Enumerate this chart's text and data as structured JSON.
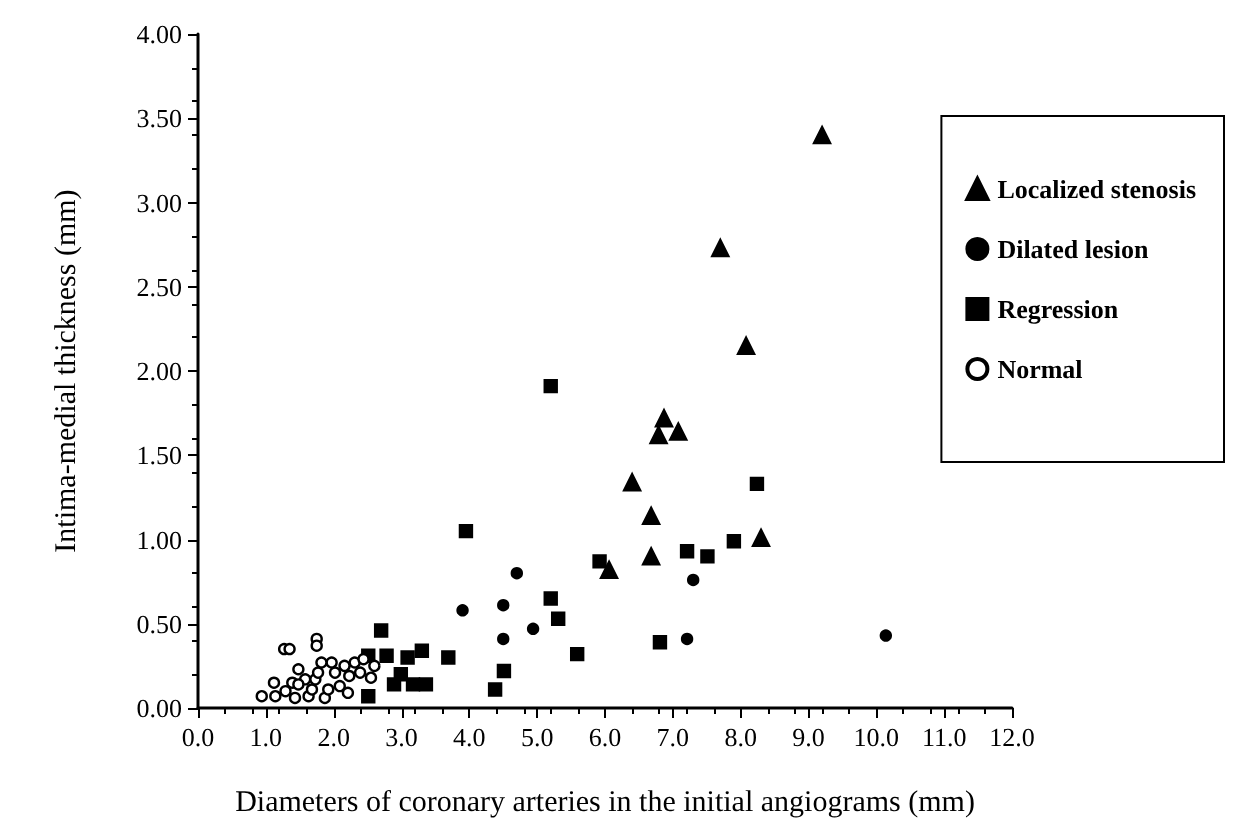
{
  "chart_data": {
    "type": "scatter",
    "xlabel": "Diameters of coronary arteries in the initial angiograms (mm)",
    "ylabel": "Intima-medial thickness (mm)",
    "xlim": [
      0,
      12
    ],
    "xticks": [
      {
        "value": 0,
        "label": "0.0"
      },
      {
        "value": 1,
        "label": "1.0"
      },
      {
        "value": 2,
        "label": "2.0"
      },
      {
        "value": 3,
        "label": "3.0"
      },
      {
        "value": 4,
        "label": "4.0"
      },
      {
        "value": 5,
        "label": "5.0"
      },
      {
        "value": 6,
        "label": "6.0"
      },
      {
        "value": 7,
        "label": "7.0"
      },
      {
        "value": 8,
        "label": "8.0"
      },
      {
        "value": 9,
        "label": "9.0"
      },
      {
        "value": 10,
        "label": "10.0"
      },
      {
        "value": 11,
        "label": "11.0"
      },
      {
        "value": 12,
        "label": "12.0"
      }
    ],
    "ylim": [
      0,
      4
    ],
    "yticks": [
      {
        "value": 0,
        "label": "0.00"
      },
      {
        "value": 0.5,
        "label": "0.50"
      },
      {
        "value": 1,
        "label": "1.00"
      },
      {
        "value": 1.5,
        "label": "1.50"
      },
      {
        "value": 2,
        "label": "2.00"
      },
      {
        "value": 2.5,
        "label": "2.50"
      },
      {
        "value": 3,
        "label": "3.00"
      },
      {
        "value": 3.5,
        "label": "3.50"
      },
      {
        "value": 4,
        "label": "4.00"
      }
    ],
    "grid": false,
    "legend": "top right",
    "series": [
      {
        "name": "Localized stenosis",
        "color": "#000000",
        "marker": "triangle",
        "x": [
          9.2,
          7.7,
          8.08,
          6.87,
          6.79,
          7.08,
          6.4,
          6.68,
          6.68,
          8.3,
          6.06
        ],
        "values": [
          3.4,
          2.73,
          2.15,
          1.72,
          1.62,
          1.64,
          1.34,
          1.14,
          0.9,
          1.01,
          0.82
        ]
      },
      {
        "name": "Dilated lesion",
        "color": "#000000",
        "marker": "circle",
        "x": [
          7.3,
          7.21,
          10.14,
          4.94,
          3.9,
          4.5,
          4.5,
          4.7
        ],
        "values": [
          0.76,
          0.41,
          0.43,
          0.47,
          0.58,
          0.61,
          0.41,
          0.8
        ]
      },
      {
        "name": "Regression",
        "color": "#000000",
        "marker": "square",
        "x": [
          5.2,
          8.24,
          7.21,
          7.51,
          7.9,
          5.92,
          5.2,
          5.31,
          5.59,
          6.81,
          2.7,
          2.51,
          2.78,
          3.09,
          3.3,
          3.69,
          2.99,
          2.89,
          3.17,
          3.36,
          2.51,
          4.38,
          4.51,
          3.95
        ],
        "values": [
          1.91,
          1.33,
          0.93,
          0.9,
          0.99,
          0.87,
          0.65,
          0.53,
          0.32,
          0.39,
          0.46,
          0.31,
          0.31,
          0.3,
          0.34,
          0.3,
          0.2,
          0.14,
          0.14,
          0.14,
          0.07,
          0.11,
          0.22,
          1.05
        ]
      },
      {
        "name": "Normal",
        "color": "#ffffff",
        "marker": "circle",
        "x": [
          1.27,
          1.35,
          1.75,
          1.75,
          0.94,
          1.12,
          1.14,
          1.29,
          1.39,
          1.43,
          1.48,
          1.58,
          1.63,
          1.73,
          1.77,
          1.68,
          1.87,
          1.92,
          2.02,
          1.97,
          2.09,
          2.16,
          2.23,
          2.31,
          2.39,
          2.44,
          2.6,
          2.55,
          1.82,
          1.48,
          2.21
        ],
        "values": [
          0.35,
          0.35,
          0.41,
          0.37,
          0.07,
          0.15,
          0.07,
          0.1,
          0.15,
          0.06,
          0.23,
          0.17,
          0.07,
          0.17,
          0.21,
          0.11,
          0.06,
          0.11,
          0.21,
          0.27,
          0.13,
          0.25,
          0.19,
          0.27,
          0.21,
          0.29,
          0.25,
          0.18,
          0.27,
          0.14,
          0.09
        ]
      }
    ]
  }
}
